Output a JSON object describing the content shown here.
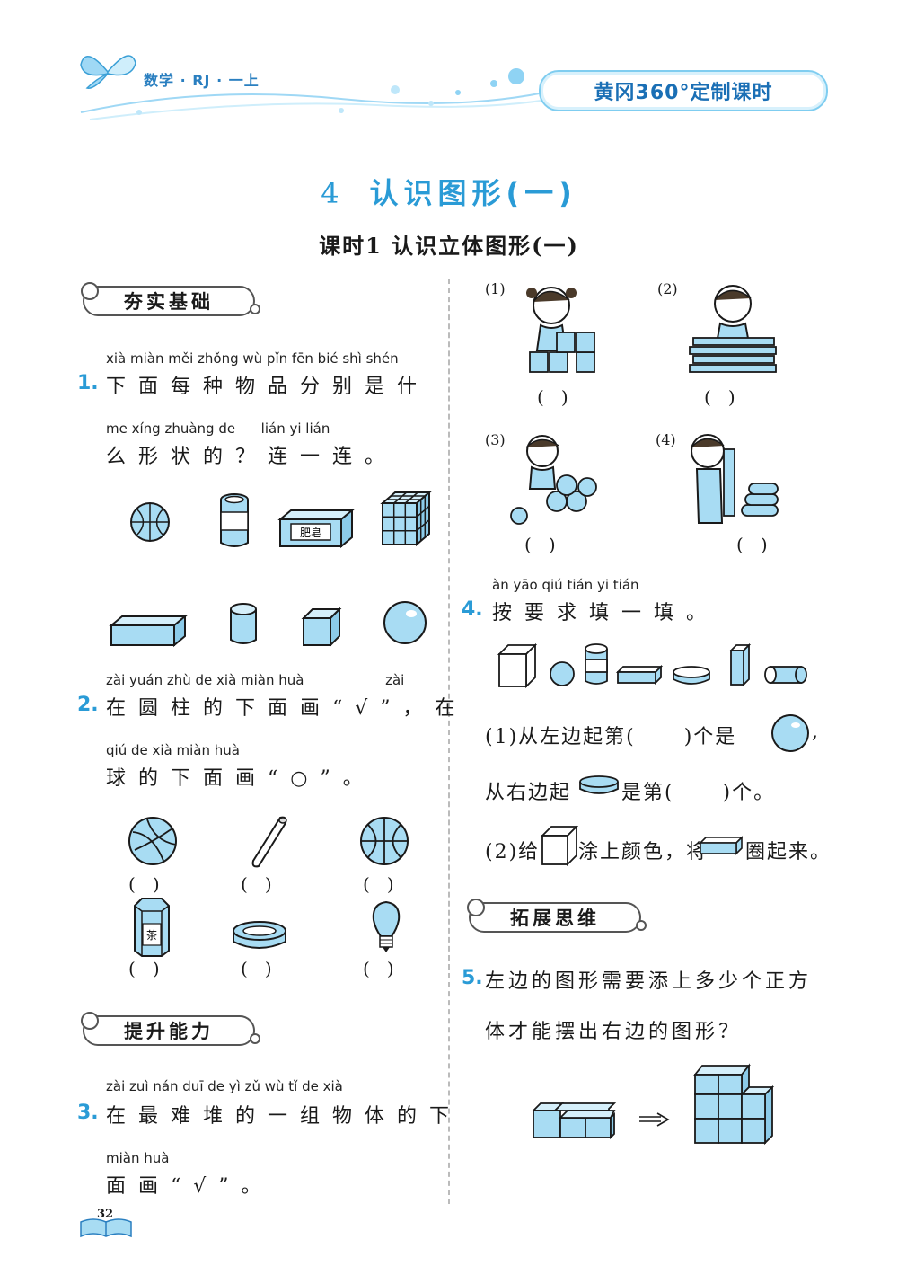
{
  "header": {
    "subject": "数学 · RJ · 一上",
    "series": "黄冈360°定制课时"
  },
  "chapter": {
    "number": "4",
    "title": "认识图形(一)"
  },
  "lesson": {
    "title": "课时1  认识立体图形(一)"
  },
  "sections": {
    "basic": "夯实基础",
    "improve": "提升能力",
    "extend": "拓展思维"
  },
  "q1": {
    "num": "1.",
    "pinyin1": "xià miàn měi zhǒng wù pǐn fēn bié shì shén",
    "line1": "下面每种物品分别是什",
    "pinyin2": "me xíng zhuàng de      lián yi lián",
    "line2": "么形状的？连一连。",
    "soap_label": "肥皂"
  },
  "q2": {
    "num": "2.",
    "pinyin1": "zài yuán zhù de xià miàn huà                   zài",
    "line1": "在圆柱的下面画“√”，在",
    "pinyin2": "qiú de xià miàn huà",
    "line2": "球的下面画“○”。",
    "tea_label": "茶",
    "paren": "(   )"
  },
  "q3": {
    "num": "3.",
    "pinyin1": "zài zuì nán duī de yì zǔ wù tǐ de xià",
    "line1": "在最难堆的一组物体的下",
    "pinyin2": "miàn huà",
    "line2": "面画“√”。",
    "labels": [
      "(1)",
      "(2)",
      "(3)",
      "(4)"
    ]
  },
  "q4": {
    "num": "4.",
    "pinyin": "àn yāo qiú tián yi tián",
    "line": "按要求填一填。",
    "p1a": "(1)从左边起第(      )个是",
    "p1b": "从右边起",
    "p1c": "是第(      )个。",
    "p2a": "(2)给",
    "p2b": "涂上颜色，将",
    "p2c": "圈起来。"
  },
  "q5": {
    "num": "5.",
    "line1": "左边的图形需要添上多少个正方",
    "line2": "体才能摆出右边的图形？"
  },
  "page_number": "32",
  "colors": {
    "accent": "#2a9bd6",
    "shape_fill": "#a8dcf3",
    "shape_stroke": "#1a1a1a"
  }
}
